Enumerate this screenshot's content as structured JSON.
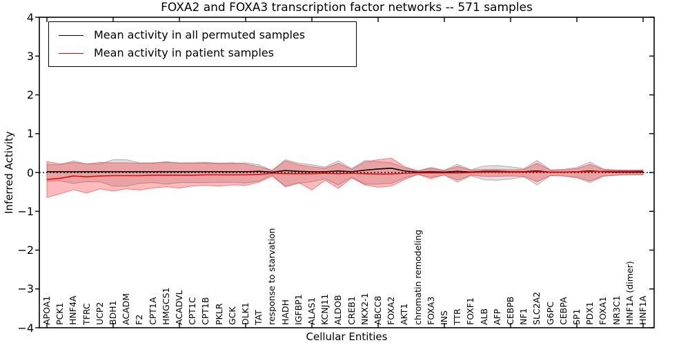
{
  "chart_data": {
    "type": "line",
    "title": "FOXA2 and FOXA3 transcription factor networks -- 571 samples",
    "xlabel": "Cellular Entities",
    "ylabel": "Inferred Activity",
    "ylim": [
      -4,
      4
    ],
    "ytick_labels": [
      "4",
      "3",
      "2",
      "1",
      "0",
      "−1",
      "−2",
      "−3",
      "−4"
    ],
    "grid": false,
    "zero_line": true,
    "legend_position": "upper left",
    "axis_color": "#000000",
    "categories": [
      "APOA1",
      "PCK1",
      "HNF4A",
      "TFRC",
      "UCP2",
      "BDH1",
      "ACADM",
      "F2",
      "CPT1A",
      "HMGCS1",
      "ACADVL",
      "CPT1C",
      "CPT1B",
      "PKLR",
      "GCK",
      "DLK1",
      "TAT",
      "response to starvation",
      "HADH",
      "IGFBP1",
      "ALAS1",
      "KCNJ11",
      "ALDOB",
      "CREB1",
      "NKX2-1",
      "ABCC8",
      "FOXA2",
      "AKT1",
      "chromatin remodeling",
      "FOXA3",
      "INS",
      "TTR",
      "FOXF1",
      "ALB",
      "AFP",
      "CEBPB",
      "NF1",
      "SLC2A2",
      "G6PC",
      "CEBPA",
      "SP1",
      "PDX1",
      "FOXA1",
      "NR3C1",
      "HNF1A (dimer)",
      "HNF1A"
    ],
    "series": [
      {
        "name": "Mean activity in all permuted samples",
        "color": "#000000",
        "values": [
          0.02,
          0.02,
          0.02,
          0.02,
          0.02,
          0.02,
          0.02,
          0.02,
          0.02,
          0.02,
          0.02,
          0.02,
          0.02,
          0.02,
          0.02,
          0.02,
          0.03,
          0.01,
          0.05,
          0.03,
          0.02,
          0.02,
          0.04,
          0.02,
          0.06,
          0.09,
          0.11,
          0.04,
          0.01,
          0.02,
          0.01,
          0.03,
          0.01,
          0.03,
          0.03,
          0.02,
          0.02,
          0.04,
          0.01,
          0.01,
          0.02,
          0.04,
          0.02,
          0.01,
          0.01,
          0.01
        ]
      },
      {
        "name": "Mean activity in patient samples",
        "color": "#ff0000",
        "values": [
          -0.18,
          -0.15,
          -0.09,
          -0.11,
          -0.09,
          -0.08,
          -0.08,
          -0.08,
          -0.07,
          -0.07,
          -0.07,
          -0.07,
          -0.06,
          -0.06,
          -0.06,
          -0.06,
          -0.05,
          -0.02,
          -0.03,
          -0.03,
          -0.03,
          -0.02,
          -0.03,
          -0.02,
          -0.03,
          -0.04,
          -0.04,
          -0.02,
          -0.01,
          -0.01,
          -0.01,
          -0.01,
          0.0,
          0.01,
          0.01,
          0.01,
          0.01,
          0.02,
          0.01,
          0.01,
          0.02,
          0.02,
          0.03,
          0.03,
          0.03,
          0.04
        ]
      }
    ],
    "bands": [
      {
        "name": "permuted-std-band",
        "fill": "rgba(128,128,128,0.25)",
        "edge": "rgba(110,110,110,0.5)",
        "upper": [
          0.2,
          0.2,
          0.3,
          0.22,
          0.22,
          0.33,
          0.33,
          0.25,
          0.24,
          0.28,
          0.24,
          0.24,
          0.24,
          0.23,
          0.23,
          0.25,
          0.2,
          0.05,
          0.33,
          0.24,
          0.2,
          0.14,
          0.3,
          0.1,
          0.31,
          0.28,
          0.25,
          0.12,
          0.05,
          0.1,
          0.06,
          0.21,
          0.07,
          0.17,
          0.18,
          0.15,
          0.1,
          0.31,
          0.07,
          0.08,
          0.13,
          0.27,
          0.09,
          0.06,
          0.05,
          0.05
        ],
        "lower": [
          -0.22,
          -0.22,
          -0.28,
          -0.24,
          -0.24,
          -0.35,
          -0.35,
          -0.28,
          -0.26,
          -0.3,
          -0.26,
          -0.26,
          -0.26,
          -0.25,
          -0.25,
          -0.27,
          -0.22,
          -0.06,
          -0.38,
          -0.28,
          -0.24,
          -0.16,
          -0.32,
          -0.12,
          -0.3,
          -0.3,
          -0.28,
          -0.14,
          -0.05,
          -0.12,
          -0.07,
          -0.25,
          -0.08,
          -0.19,
          -0.2,
          -0.17,
          -0.11,
          -0.32,
          -0.08,
          -0.09,
          -0.14,
          -0.26,
          -0.1,
          -0.07,
          -0.05,
          -0.05
        ]
      },
      {
        "name": "patient-std-band",
        "fill": "rgba(255,30,30,0.30)",
        "edge": "rgba(235,60,60,0.6)",
        "upper": [
          0.28,
          0.22,
          0.26,
          0.22,
          0.26,
          0.25,
          0.25,
          0.24,
          0.25,
          0.26,
          0.25,
          0.25,
          0.26,
          0.24,
          0.25,
          0.22,
          0.15,
          0.06,
          0.3,
          0.2,
          0.15,
          0.11,
          0.24,
          0.08,
          0.27,
          0.33,
          0.37,
          0.15,
          0.04,
          0.13,
          0.05,
          0.16,
          0.06,
          0.08,
          0.08,
          0.07,
          0.08,
          0.24,
          0.06,
          0.07,
          0.1,
          0.21,
          0.08,
          0.06,
          0.06,
          0.06
        ],
        "lower": [
          -0.64,
          -0.55,
          -0.44,
          -0.53,
          -0.42,
          -0.48,
          -0.42,
          -0.45,
          -0.4,
          -0.37,
          -0.4,
          -0.35,
          -0.33,
          -0.35,
          -0.32,
          -0.33,
          -0.25,
          -0.1,
          -0.35,
          -0.26,
          -0.45,
          -0.2,
          -0.41,
          -0.14,
          -0.32,
          -0.38,
          -0.35,
          -0.18,
          -0.05,
          -0.16,
          -0.06,
          -0.2,
          -0.07,
          -0.1,
          -0.1,
          -0.09,
          -0.1,
          -0.24,
          -0.08,
          -0.09,
          -0.12,
          -0.22,
          -0.09,
          -0.07,
          -0.06,
          -0.06
        ]
      }
    ]
  }
}
